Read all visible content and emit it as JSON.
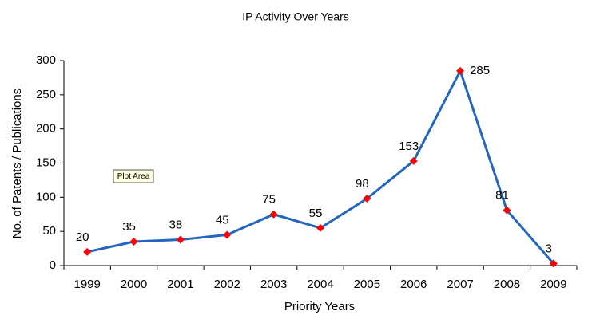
{
  "chart_data": {
    "type": "line",
    "title": "IP Activity Over Years",
    "x_label": "Priority Years",
    "y_label": "No. of Patents / Publications",
    "categories": [
      "1999",
      "2000",
      "2001",
      "2002",
      "2003",
      "2004",
      "2005",
      "2006",
      "2007",
      "2008",
      "2009"
    ],
    "series": [
      {
        "name": "IP Activity",
        "color": "#2266c0",
        "marker_color": "#ff0000",
        "values": [
          20,
          35,
          38,
          45,
          75,
          55,
          98,
          153,
          285,
          81,
          3
        ]
      }
    ],
    "ylim": [
      0,
      300
    ],
    "yticks": [
      0,
      50,
      100,
      150,
      200,
      250,
      300
    ],
    "grid": false,
    "tooltip": "Plot Area"
  }
}
